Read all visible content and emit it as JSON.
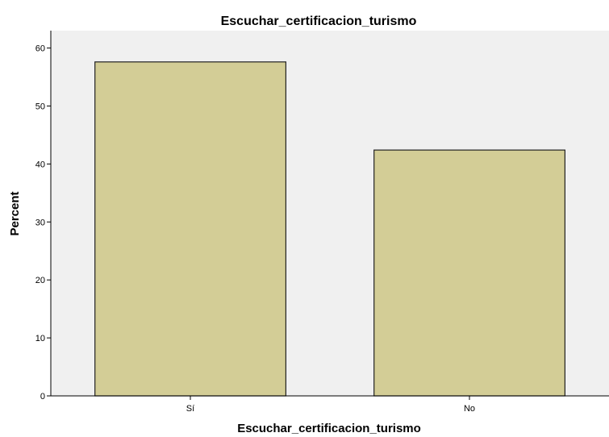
{
  "chart_data": {
    "type": "bar",
    "title": "Escuchar_certificacion_turismo",
    "xlabel": "Escuchar_certificacion_turismo",
    "ylabel": "Percent",
    "categories": [
      "Sí",
      "No"
    ],
    "values": [
      57.6,
      42.4
    ],
    "ylim": [
      0,
      63
    ],
    "yticks": [
      "0",
      "10",
      "20",
      "30",
      "40",
      "50",
      "60"
    ],
    "grid": false,
    "legend": "none",
    "colors": {
      "bar_fill": "#d3cd96",
      "bar_stroke": "#222222",
      "plot_background": "#f0f0f0",
      "axis": "#000000"
    }
  }
}
